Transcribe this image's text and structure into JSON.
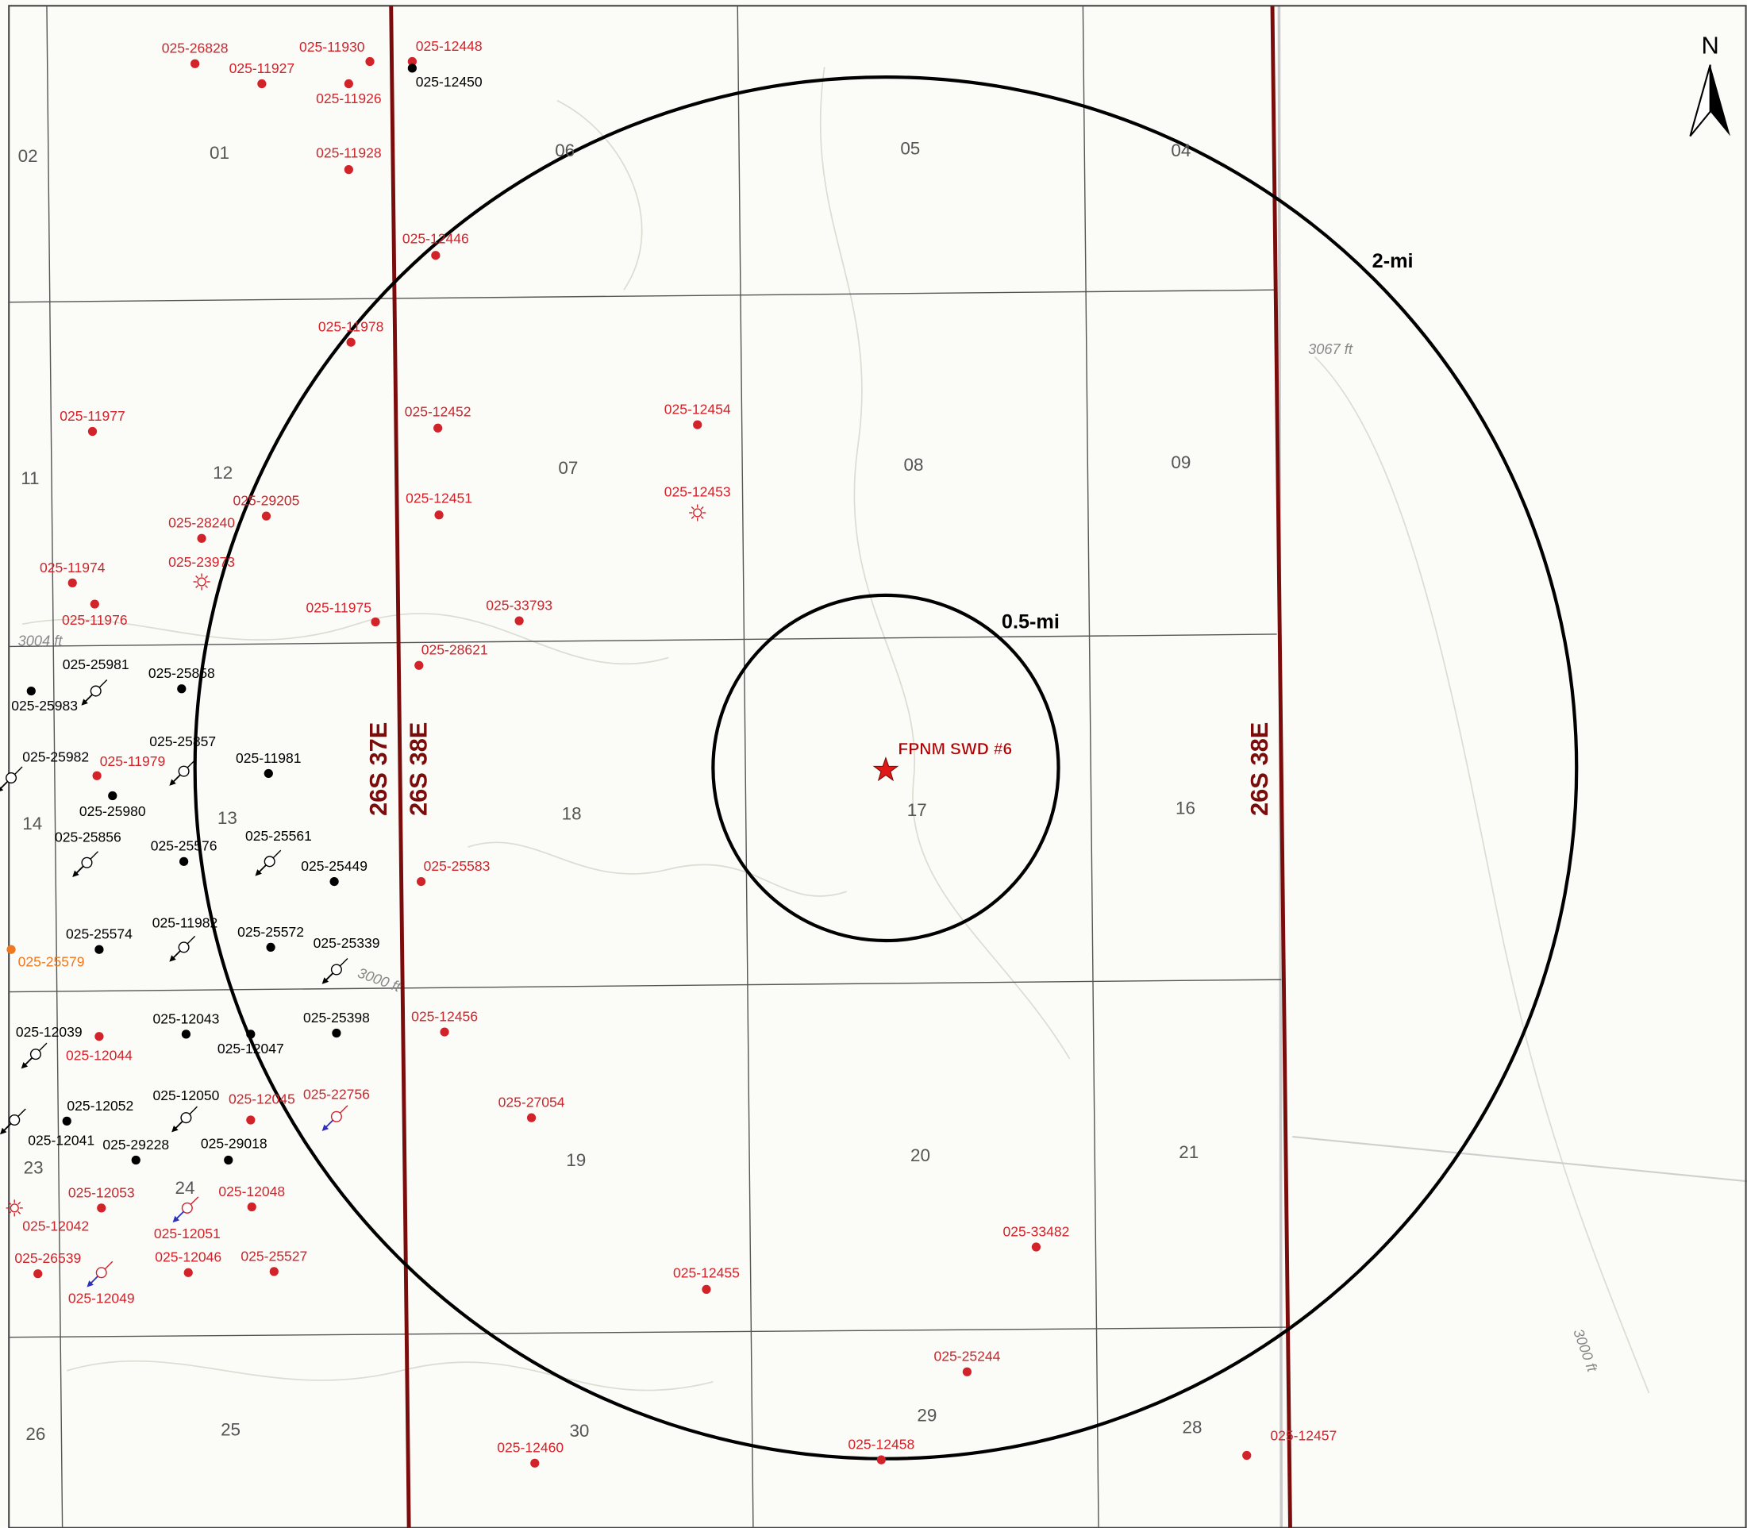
{
  "map": {
    "north_label": "N",
    "sections": [
      "02",
      "01",
      "06",
      "05",
      "04",
      "11",
      "12",
      "07",
      "08",
      "09",
      "14",
      "13",
      "18",
      "17",
      "16",
      "23",
      "24",
      "19",
      "20",
      "21",
      "26",
      "25",
      "30",
      "29",
      "28"
    ],
    "township_labels": [
      "26S 37E",
      "26S 38E",
      "26S 38E"
    ],
    "radius_labels": [
      "2-mi",
      "0.5-mi"
    ],
    "site_label": "FPNM SWD #6",
    "elevation_labels": [
      "3067 ft",
      "3004 ft",
      "3000 ft",
      "3000 ft"
    ],
    "wells": [
      {
        "api": "025-26828",
        "color": "#d2232a",
        "symbol": "dot"
      },
      {
        "api": "025-11927",
        "color": "#d2232a",
        "symbol": "dot"
      },
      {
        "api": "025-11930",
        "color": "#d2232a",
        "symbol": "dot"
      },
      {
        "api": "025-11926",
        "color": "#d2232a",
        "symbol": "dot"
      },
      {
        "api": "025-12448",
        "color": "#d2232a",
        "symbol": "dot"
      },
      {
        "api": "025-12450",
        "color": "#000000",
        "symbol": "dot"
      },
      {
        "api": "025-11928",
        "color": "#d2232a",
        "symbol": "dot"
      },
      {
        "api": "025-12446",
        "color": "#d2232a",
        "symbol": "dot"
      },
      {
        "api": "025-11978",
        "color": "#d2232a",
        "symbol": "dot"
      },
      {
        "api": "025-11977",
        "color": "#d2232a",
        "symbol": "dot"
      },
      {
        "api": "025-12452",
        "color": "#d2232a",
        "symbol": "dot"
      },
      {
        "api": "025-12454",
        "color": "#d2232a",
        "symbol": "dot"
      },
      {
        "api": "025-12453",
        "color": "#d2232a",
        "symbol": "sun"
      },
      {
        "api": "025-12451",
        "color": "#d2232a",
        "symbol": "dot"
      },
      {
        "api": "025-29205",
        "color": "#d2232a",
        "symbol": "dot"
      },
      {
        "api": "025-28240",
        "color": "#d2232a",
        "symbol": "dot"
      },
      {
        "api": "025-23973",
        "color": "#d2232a",
        "symbol": "sun"
      },
      {
        "api": "025-11974",
        "color": "#d2232a",
        "symbol": "dot"
      },
      {
        "api": "025-11976",
        "color": "#d2232a",
        "symbol": "dot"
      },
      {
        "api": "025-11975",
        "color": "#d2232a",
        "symbol": "dot"
      },
      {
        "api": "025-33793",
        "color": "#d2232a",
        "symbol": "dot"
      },
      {
        "api": "025-28621",
        "color": "#d2232a",
        "symbol": "dot"
      },
      {
        "api": "025-25981",
        "color": "#000000",
        "symbol": "injection"
      },
      {
        "api": "025-25983",
        "color": "#000000",
        "symbol": "dot"
      },
      {
        "api": "025-25858",
        "color": "#000000",
        "symbol": "dot"
      },
      {
        "api": "025-25857",
        "color": "#000000",
        "symbol": "injection"
      },
      {
        "api": "025-25982",
        "color": "#000000",
        "symbol": "injection"
      },
      {
        "api": "025-11979",
        "color": "#d2232a",
        "symbol": "dot"
      },
      {
        "api": "025-11981",
        "color": "#000000",
        "symbol": "dot"
      },
      {
        "api": "025-25980",
        "color": "#000000",
        "symbol": "dot"
      },
      {
        "api": "025-25856",
        "color": "#000000",
        "symbol": "injection"
      },
      {
        "api": "025-25576",
        "color": "#000000",
        "symbol": "dot"
      },
      {
        "api": "025-25561",
        "color": "#000000",
        "symbol": "injection"
      },
      {
        "api": "025-25449",
        "color": "#000000",
        "symbol": "dot"
      },
      {
        "api": "025-25583",
        "color": "#d2232a",
        "symbol": "dot"
      },
      {
        "api": "025-25574",
        "color": "#000000",
        "symbol": "dot"
      },
      {
        "api": "025-25579",
        "color": "#f07820",
        "symbol": "dot"
      },
      {
        "api": "025-11982",
        "color": "#000000",
        "symbol": "injection"
      },
      {
        "api": "025-25572",
        "color": "#000000",
        "symbol": "dot"
      },
      {
        "api": "025-25339",
        "color": "#000000",
        "symbol": "injection"
      },
      {
        "api": "025-12039",
        "color": "#000000",
        "symbol": "injection"
      },
      {
        "api": "025-12044",
        "color": "#d2232a",
        "symbol": "dot"
      },
      {
        "api": "025-12043",
        "color": "#000000",
        "symbol": "dot"
      },
      {
        "api": "025-12047",
        "color": "#000000",
        "symbol": "dot"
      },
      {
        "api": "025-25398",
        "color": "#000000",
        "symbol": "dot"
      },
      {
        "api": "025-12456",
        "color": "#d2232a",
        "symbol": "dot"
      },
      {
        "api": "025-12050",
        "color": "#000000",
        "symbol": "injection"
      },
      {
        "api": "025-12052",
        "color": "#000000",
        "symbol": "dot"
      },
      {
        "api": "025-12041",
        "color": "#000000",
        "symbol": "injection"
      },
      {
        "api": "025-12045",
        "color": "#d2232a",
        "symbol": "dot"
      },
      {
        "api": "025-22756",
        "color": "#d2232a",
        "symbol": "injection"
      },
      {
        "api": "025-27054",
        "color": "#d2232a",
        "symbol": "dot"
      },
      {
        "api": "025-29228",
        "color": "#000000",
        "symbol": "dot"
      },
      {
        "api": "025-29018",
        "color": "#000000",
        "symbol": "dot"
      },
      {
        "api": "025-12053",
        "color": "#d2232a",
        "symbol": "dot"
      },
      {
        "api": "025-12048",
        "color": "#d2232a",
        "symbol": "dot"
      },
      {
        "api": "025-12051",
        "color": "#d2232a",
        "symbol": "injection"
      },
      {
        "api": "025-12042",
        "color": "#d2232a",
        "symbol": "sun"
      },
      {
        "api": "025-26539",
        "color": "#d2232a",
        "symbol": "dot"
      },
      {
        "api": "025-12049",
        "color": "#d2232a",
        "symbol": "injection"
      },
      {
        "api": "025-12046",
        "color": "#d2232a",
        "symbol": "dot"
      },
      {
        "api": "025-25527",
        "color": "#d2232a",
        "symbol": "dot"
      },
      {
        "api": "025-12455",
        "color": "#d2232a",
        "symbol": "dot"
      },
      {
        "api": "025-33482",
        "color": "#d2232a",
        "symbol": "dot"
      },
      {
        "api": "025-25244",
        "color": "#d2232a",
        "symbol": "dot"
      },
      {
        "api": "025-12460",
        "color": "#d2232a",
        "symbol": "dot"
      },
      {
        "api": "025-12458",
        "color": "#d2232a",
        "symbol": "dot"
      },
      {
        "api": "025-12457",
        "color": "#d2232a",
        "symbol": "dot"
      }
    ]
  }
}
